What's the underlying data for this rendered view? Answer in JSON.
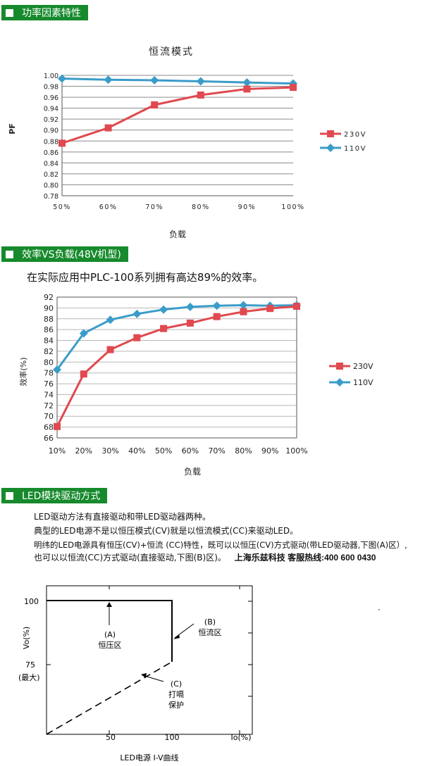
{
  "sections": [
    {
      "title": "功率因素特性"
    },
    {
      "title": "效率VS负载(48V机型)"
    },
    {
      "title": "LED模块驱动方式"
    }
  ],
  "pf_chart": {
    "chart_data": {
      "type": "line",
      "title": "恒流模式",
      "xlabel": "负载",
      "ylabel": "PF",
      "categories": [
        "50%",
        "60%",
        "70%",
        "80%",
        "90%",
        "100%"
      ],
      "ylim": [
        0.78,
        1.0
      ],
      "yticks": [
        "0.78",
        "0.80",
        "0.82",
        "0.84",
        "0.86",
        "0.88",
        "0.90",
        "0.92",
        "0.94",
        "0.96",
        "0.98",
        "1.00"
      ],
      "grid": true,
      "legend": "right",
      "series": [
        {
          "name": "230V",
          "color": "#e0494f",
          "marker": "square",
          "values": [
            0.876,
            0.904,
            0.946,
            0.964,
            0.975,
            0.978
          ]
        },
        {
          "name": "110V",
          "color": "#3a9cc9",
          "marker": "diamond",
          "values": [
            0.994,
            0.992,
            0.991,
            0.989,
            0.987,
            0.985
          ]
        }
      ]
    }
  },
  "eff_intro": {
    "text": "在实际应用中PLC-100系列拥有高达89%的效率。"
  },
  "eff_chart": {
    "chart_data": {
      "type": "line",
      "xlabel": "负载",
      "ylabel": "效率(%)",
      "categories": [
        "10%",
        "20%",
        "30%",
        "40%",
        "50%",
        "60%",
        "70%",
        "80%",
        "90%",
        "100%"
      ],
      "ylim": [
        66,
        92
      ],
      "yticks": [
        "66",
        "68",
        "70",
        "72",
        "74",
        "76",
        "78",
        "80",
        "82",
        "84",
        "86",
        "88",
        "90",
        "92"
      ],
      "grid": true,
      "legend": "right",
      "series": [
        {
          "name": "230V",
          "color": "#e0494f",
          "marker": "square",
          "values": [
            68.1,
            77.8,
            82.3,
            84.5,
            86.2,
            87.2,
            88.4,
            89.3,
            89.9,
            90.3
          ]
        },
        {
          "name": "110V",
          "color": "#3a9cc9",
          "marker": "diamond",
          "values": [
            78.6,
            85.3,
            87.8,
            88.9,
            89.7,
            90.2,
            90.4,
            90.5,
            90.4,
            90.5
          ]
        }
      ]
    }
  },
  "led_text": {
    "line1": "LED驱动方法有直接驱动和带LED驱动器两种。",
    "line2": "典型的LED电源不是以恒压模式(CV)就是以恒流模式(CC)来驱动LED。",
    "line3": "明纬的LED电源具有恒压(CV)+恒流 (CC)特性，既可以以恒压(CV)方式驱动(带LED驱动器,下图(A)区）,",
    "line4": "也可以以恒流(CC)方式驱动(直接驱动,下图(B)区)。",
    "hotline": "上海乐兹科技 客服热线:400 600 0430"
  },
  "iv_diagram": {
    "caption": "LED电源 I-V曲线",
    "ylabel_top": "Vo(%)",
    "y100": "100",
    "y75": "75",
    "y75_sub": "(最大)",
    "x50": "50",
    "x100": "100",
    "xlabel": "Io(%)",
    "region_a": [
      "(A)",
      "恒压区"
    ],
    "region_b": [
      "(B)",
      "恒流区"
    ],
    "region_c": [
      "(C)",
      "打嗝",
      "保护"
    ]
  }
}
